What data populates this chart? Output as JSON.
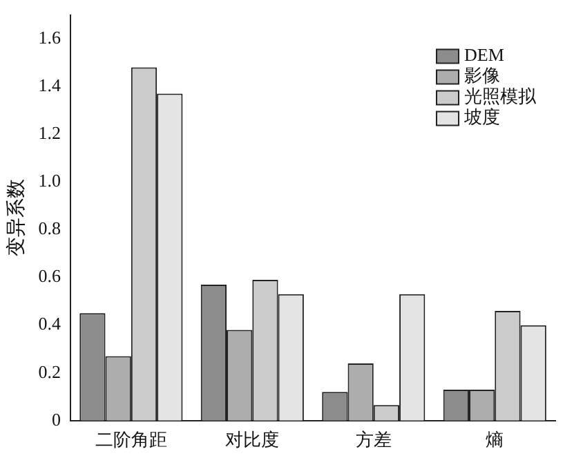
{
  "chart_data": {
    "type": "bar",
    "ylabel": "变异系数",
    "categories": [
      "二阶角距",
      "对比度",
      "方差",
      "熵"
    ],
    "series": [
      {
        "name": "DEM",
        "color": "#8c8c8c",
        "values": [
          0.45,
          0.57,
          0.12,
          0.13
        ]
      },
      {
        "name": "影像",
        "color": "#adadad",
        "values": [
          0.27,
          0.38,
          0.24,
          0.13
        ]
      },
      {
        "name": "光照模拟",
        "color": "#cbcbcb",
        "values": [
          1.48,
          0.59,
          0.065,
          0.46
        ]
      },
      {
        "name": "坡度",
        "color": "#e4e4e4",
        "values": [
          1.37,
          0.53,
          0.53,
          0.4
        ]
      }
    ],
    "ylim": [
      0,
      1.7
    ],
    "yticks": [
      0,
      0.2,
      0.4,
      0.6,
      0.8,
      {
        "value": 1,
        "label": "1.0"
      },
      1.2,
      1.4,
      1.6
    ],
    "grid": false,
    "legend": "top right"
  }
}
